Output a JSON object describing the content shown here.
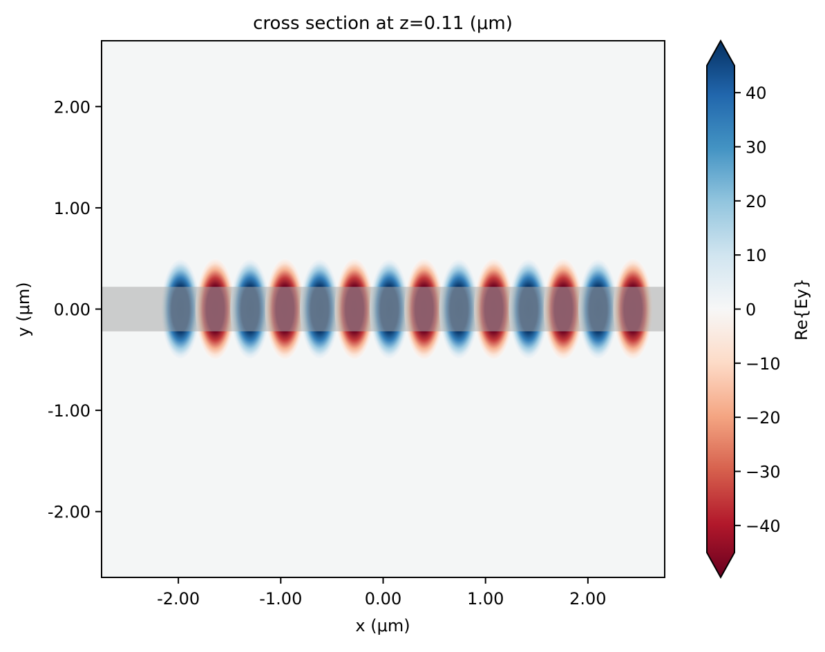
{
  "chart_data": {
    "type": "heatmap",
    "title": "cross section at z=0.11 (μm)",
    "xlabel": "x (μm)",
    "ylabel": "y (μm)",
    "xlim": [
      -2.75,
      2.75
    ],
    "ylim": [
      -2.65,
      2.65
    ],
    "x_ticks": [
      {
        "value": -2.0,
        "label": "-2.00"
      },
      {
        "value": -1.0,
        "label": "-1.00"
      },
      {
        "value": 0.0,
        "label": "0.00"
      },
      {
        "value": 1.0,
        "label": "1.00"
      },
      {
        "value": 2.0,
        "label": "2.00"
      }
    ],
    "y_ticks": [
      {
        "value": 2.0,
        "label": "2.00"
      },
      {
        "value": 1.0,
        "label": "1.00"
      },
      {
        "value": 0.0,
        "label": "0.00"
      },
      {
        "value": -1.0,
        "label": "-1.00"
      },
      {
        "value": -2.0,
        "label": "-2.00"
      }
    ],
    "colorbar": {
      "label": "Re{Ey}",
      "colormap": "RdBu",
      "vmin": -45,
      "vmax": 45,
      "extend": "both",
      "ticks": [
        {
          "value": 40,
          "label": "40"
        },
        {
          "value": 30,
          "label": "30"
        },
        {
          "value": 20,
          "label": "20"
        },
        {
          "value": 10,
          "label": "10"
        },
        {
          "value": 0,
          "label": "0"
        },
        {
          "value": -10,
          "label": "−10"
        },
        {
          "value": -20,
          "label": "−20"
        },
        {
          "value": -30,
          "label": "−30"
        },
        {
          "value": -40,
          "label": "−40"
        }
      ]
    },
    "waveguide": {
      "y_min": -0.22,
      "y_max": 0.22,
      "color": "#a9a9a9"
    },
    "field": {
      "x_start": -2.0,
      "x_end": 2.55,
      "period": 0.68,
      "first_positive_x": -1.98,
      "amplitude": 45,
      "mode_width": 0.22
    },
    "background_color": "#f4f6f6"
  }
}
